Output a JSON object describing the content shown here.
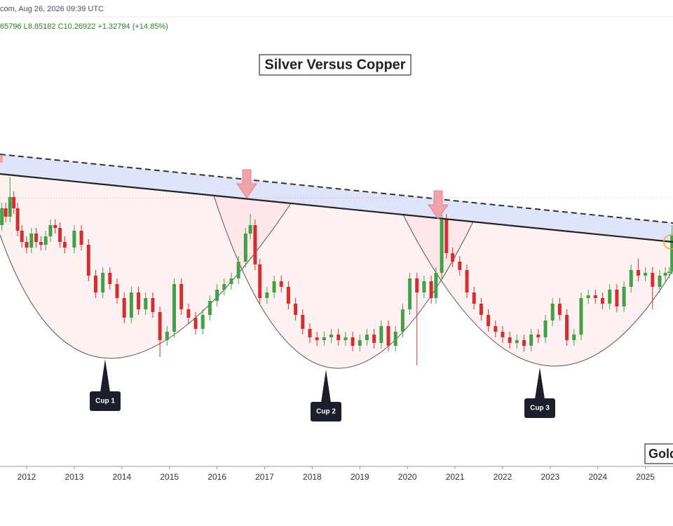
{
  "chart_data": {
    "type": "candlestick",
    "header": "com, Aug 26, 2026 09:39 UTC",
    "subheader": "65796 L8.85182 C10.26922 +1.32794 (+14.85%)",
    "title": "Silver Versus Copper",
    "watermark": "Gold",
    "annotations": [
      "Cup 1",
      "Cup 2",
      "Cup 3"
    ],
    "up_color": "#43a047",
    "down_color": "#d32f2f",
    "xlim": [
      2011.44,
      2025.58
    ],
    "ylim": [
      2,
      18
    ],
    "xticks": [
      2012,
      2013,
      2014,
      2015,
      2016,
      2017,
      2018,
      2019,
      2020,
      2021,
      2022,
      2023,
      2024,
      2025
    ],
    "x": [
      2011.48,
      2011.56,
      2011.65,
      2011.73,
      2011.81,
      2011.9,
      2012.0,
      2012.1,
      2012.2,
      2012.3,
      2012.4,
      2012.5,
      2012.6,
      2012.7,
      2012.8,
      2013.0,
      2013.15,
      2013.3,
      2013.45,
      2013.6,
      2013.75,
      2013.9,
      2014.05,
      2014.2,
      2014.35,
      2014.5,
      2014.65,
      2014.8,
      2014.95,
      2015.1,
      2015.25,
      2015.4,
      2015.55,
      2015.7,
      2015.85,
      2016.0,
      2016.15,
      2016.3,
      2016.45,
      2016.6,
      2016.7,
      2016.8,
      2016.9,
      2017.05,
      2017.2,
      2017.35,
      2017.5,
      2017.65,
      2017.8,
      2017.95,
      2018.1,
      2018.25,
      2018.4,
      2018.55,
      2018.7,
      2018.85,
      2019.0,
      2019.15,
      2019.3,
      2019.45,
      2019.6,
      2019.75,
      2019.9,
      2020.05,
      2020.2,
      2020.35,
      2020.5,
      2020.6,
      2020.72,
      2020.82,
      2020.95,
      2021.1,
      2021.25,
      2021.4,
      2021.55,
      2021.7,
      2021.85,
      2022.0,
      2022.15,
      2022.3,
      2022.45,
      2022.6,
      2022.75,
      2022.9,
      2023.05,
      2023.2,
      2023.35,
      2023.5,
      2023.65,
      2023.8,
      2023.95,
      2024.1,
      2024.25,
      2024.4,
      2024.55,
      2024.7,
      2024.85,
      2025.0,
      2025.15,
      2025.3,
      2025.42,
      2025.5,
      2025.56
    ],
    "open": [
      10.6,
      11.2,
      10.9,
      11.6,
      11.2,
      10.4,
      10.0,
      9.8,
      10.3,
      10.0,
      9.9,
      10.2,
      10.6,
      10.5,
      10.0,
      9.8,
      10.4,
      9.9,
      8.8,
      8.2,
      8.9,
      8.5,
      8.0,
      7.3,
      8.2,
      7.6,
      8.0,
      7.5,
      6.5,
      6.8,
      8.5,
      7.6,
      7.3,
      6.9,
      7.4,
      7.9,
      8.3,
      8.5,
      8.7,
      9.3,
      10.3,
      10.6,
      9.2,
      8.0,
      8.2,
      8.6,
      8.4,
      7.8,
      7.4,
      6.9,
      6.6,
      6.5,
      6.6,
      6.7,
      6.5,
      6.6,
      6.3,
      6.5,
      6.7,
      6.4,
      7.0,
      6.3,
      6.8,
      7.6,
      8.7,
      8.2,
      8.6,
      8.0,
      8.9,
      10.8,
      9.6,
      9.3,
      9.0,
      8.2,
      7.8,
      7.4,
      7.0,
      6.8,
      6.6,
      6.4,
      6.5,
      6.3,
      6.7,
      6.6,
      7.2,
      7.8,
      7.4,
      6.5,
      6.7,
      8.0,
      8.1,
      8.0,
      7.8,
      8.3,
      7.7,
      8.4,
      9.0,
      8.8,
      8.9,
      8.4,
      8.8,
      8.9,
      8.94
    ],
    "high": [
      11.4,
      11.4,
      12.3,
      11.8,
      11.4,
      10.6,
      10.2,
      10.5,
      10.5,
      10.2,
      10.4,
      10.8,
      10.8,
      10.7,
      10.2,
      10.6,
      10.6,
      10.1,
      9.0,
      9.1,
      9.1,
      8.7,
      8.2,
      8.4,
      8.4,
      8.2,
      8.2,
      7.7,
      7.0,
      8.7,
      8.7,
      7.8,
      7.5,
      7.6,
      8.1,
      8.5,
      8.7,
      8.9,
      9.5,
      10.5,
      11.0,
      10.8,
      9.4,
      8.4,
      8.8,
      8.8,
      8.6,
      8.0,
      7.6,
      7.1,
      6.8,
      6.8,
      6.9,
      6.9,
      6.8,
      6.8,
      6.7,
      6.9,
      6.9,
      7.2,
      7.2,
      7.0,
      7.8,
      8.9,
      8.9,
      8.8,
      8.8,
      9.1,
      11.4,
      11.0,
      9.8,
      9.5,
      9.2,
      8.4,
      8.0,
      7.6,
      7.2,
      7.0,
      6.8,
      6.7,
      6.7,
      6.9,
      6.9,
      7.4,
      8.0,
      8.0,
      7.6,
      6.9,
      8.2,
      8.3,
      8.3,
      8.2,
      8.5,
      8.5,
      8.6,
      9.2,
      9.4,
      9.1,
      9.1,
      9.0,
      9.1,
      9.1,
      10.6
    ],
    "low": [
      10.4,
      10.7,
      10.7,
      11.0,
      10.2,
      9.8,
      9.6,
      9.6,
      9.8,
      9.7,
      9.7,
      10.0,
      10.3,
      9.8,
      9.6,
      9.6,
      9.7,
      8.6,
      8.0,
      8.0,
      8.3,
      7.8,
      7.1,
      7.1,
      7.4,
      7.4,
      7.3,
      5.9,
      6.3,
      6.6,
      7.4,
      7.1,
      6.7,
      6.7,
      7.2,
      7.7,
      8.1,
      8.3,
      8.5,
      9.1,
      10.1,
      9.0,
      7.8,
      7.8,
      8.0,
      8.2,
      7.6,
      7.2,
      6.7,
      6.4,
      6.3,
      6.3,
      6.4,
      6.3,
      6.3,
      6.1,
      6.1,
      6.3,
      6.2,
      6.2,
      6.1,
      6.1,
      6.6,
      7.4,
      5.6,
      8.0,
      7.8,
      7.8,
      8.7,
      9.4,
      9.1,
      8.8,
      8.0,
      7.6,
      7.2,
      6.8,
      6.6,
      6.4,
      6.2,
      6.2,
      6.1,
      6.1,
      6.4,
      6.4,
      7.0,
      7.2,
      6.3,
      6.3,
      6.5,
      7.8,
      7.8,
      7.6,
      7.6,
      7.5,
      7.5,
      8.2,
      8.6,
      8.6,
      7.6,
      8.2,
      8.6,
      8.7,
      8.85182
    ],
    "close": [
      11.2,
      10.9,
      11.6,
      11.2,
      10.4,
      10.0,
      9.8,
      10.3,
      10.0,
      9.9,
      10.2,
      10.6,
      10.5,
      10.0,
      9.8,
      10.4,
      9.9,
      8.8,
      8.2,
      8.9,
      8.5,
      8.0,
      7.3,
      8.2,
      7.6,
      8.0,
      7.5,
      6.5,
      6.8,
      8.5,
      7.6,
      7.3,
      6.9,
      7.4,
      7.9,
      8.3,
      8.5,
      8.7,
      9.3,
      10.3,
      10.6,
      9.2,
      8.0,
      8.2,
      8.6,
      8.4,
      7.8,
      7.4,
      6.9,
      6.6,
      6.5,
      6.6,
      6.7,
      6.5,
      6.6,
      6.3,
      6.5,
      6.7,
      6.4,
      7.0,
      6.3,
      6.8,
      7.6,
      8.7,
      8.2,
      8.6,
      8.0,
      8.9,
      10.8,
      9.6,
      9.3,
      9.0,
      8.2,
      7.8,
      7.4,
      7.0,
      6.8,
      6.6,
      6.4,
      6.5,
      6.3,
      6.7,
      6.6,
      7.2,
      7.8,
      7.4,
      6.5,
      6.7,
      8.0,
      8.1,
      8.0,
      7.8,
      8.3,
      7.7,
      8.4,
      9.0,
      8.8,
      8.9,
      8.4,
      8.8,
      8.9,
      8.94,
      10.26922
    ]
  }
}
